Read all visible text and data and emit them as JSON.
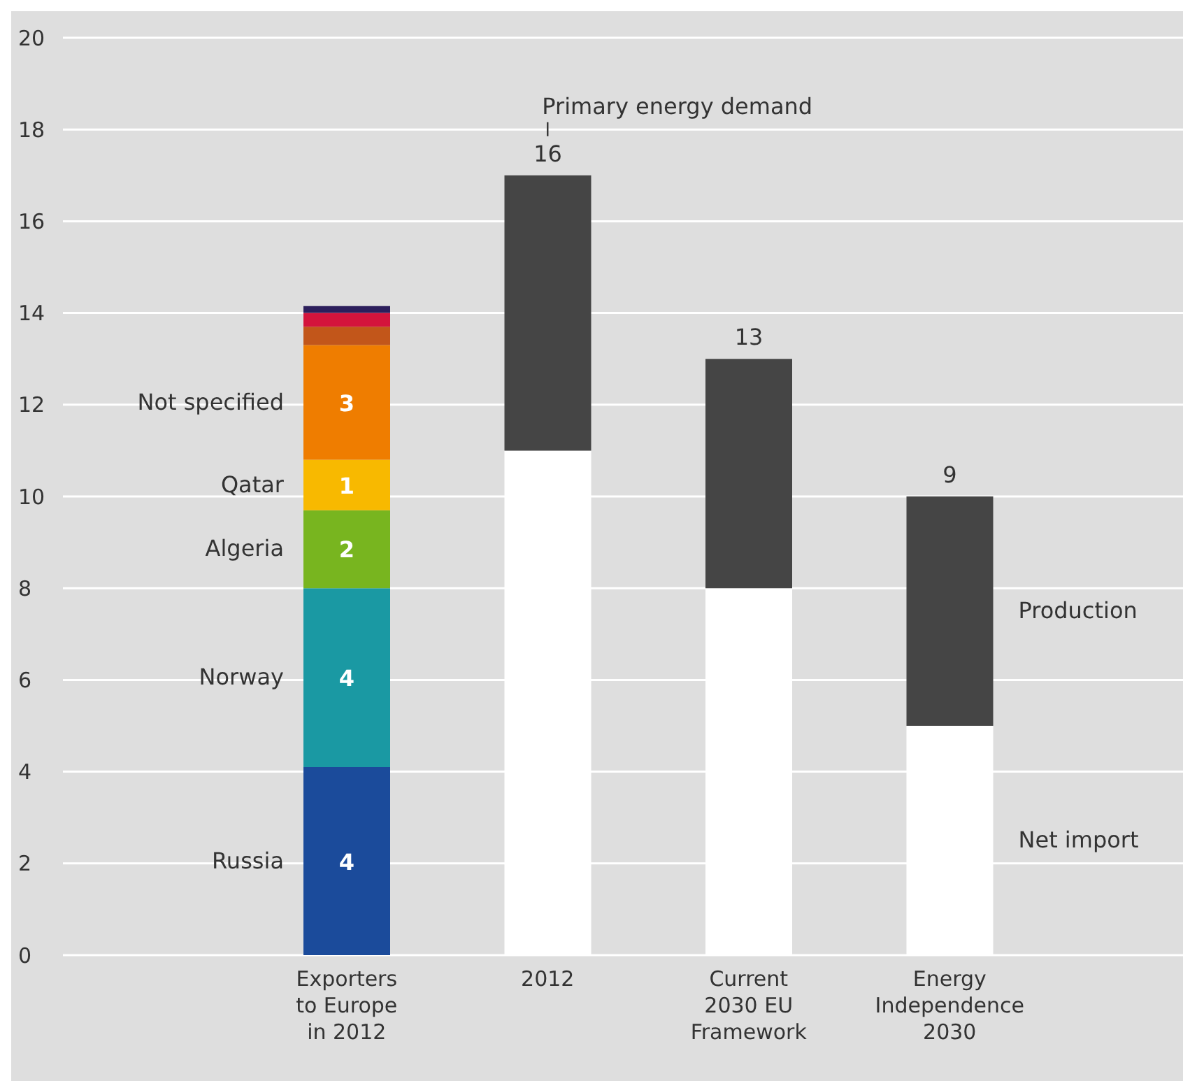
{
  "chart_data": {
    "type": "bar",
    "stacked": true,
    "categories": [
      "Exporters\nto Europe\nin 2012",
      "2012",
      "Current\n2030 EU\nFramework",
      "Energy\nIndependence\n2030"
    ],
    "series": [
      {
        "name": "Russia",
        "color": "#1b4b9b",
        "values": [
          4.1,
          null,
          null,
          null
        ],
        "value_labels": [
          "4",
          null,
          null,
          null
        ]
      },
      {
        "name": "Norway",
        "color": "#1a99a3",
        "values": [
          3.9,
          null,
          null,
          null
        ],
        "value_labels": [
          "4",
          null,
          null,
          null
        ]
      },
      {
        "name": "Algeria",
        "color": "#78b51f",
        "values": [
          1.7,
          null,
          null,
          null
        ],
        "value_labels": [
          "2",
          null,
          null,
          null
        ]
      },
      {
        "name": "Qatar",
        "color": "#f8b900",
        "values": [
          1.1,
          null,
          null,
          null
        ],
        "value_labels": [
          "1",
          null,
          null,
          null
        ]
      },
      {
        "name": "Not specified",
        "color": "#ef7d00",
        "values": [
          2.5,
          null,
          null,
          null
        ],
        "value_labels": [
          "3",
          null,
          null,
          null
        ]
      },
      {
        "color": "#c2561a",
        "values": [
          0.4,
          null,
          null,
          null
        ]
      },
      {
        "color": "#d4143c",
        "values": [
          0.3,
          null,
          null,
          null
        ]
      },
      {
        "color": "#2c1f5c",
        "values": [
          0.15,
          null,
          null,
          null
        ]
      },
      {
        "name": "Net import",
        "color": "#ffffff",
        "values": [
          null,
          11,
          8,
          5
        ]
      },
      {
        "name": "Production",
        "color": "#454545",
        "values": [
          null,
          6,
          5,
          5
        ]
      }
    ],
    "totals": [
      null,
      "16",
      "13",
      "9"
    ],
    "annotations": [
      {
        "text": "Primary energy demand",
        "x": "2012",
        "y": 17
      }
    ],
    "ylim": [
      0,
      20
    ],
    "yticks": [
      0,
      2,
      4,
      6,
      8,
      10,
      12,
      14,
      16,
      18,
      20
    ],
    "grid": "y",
    "legend": false
  }
}
